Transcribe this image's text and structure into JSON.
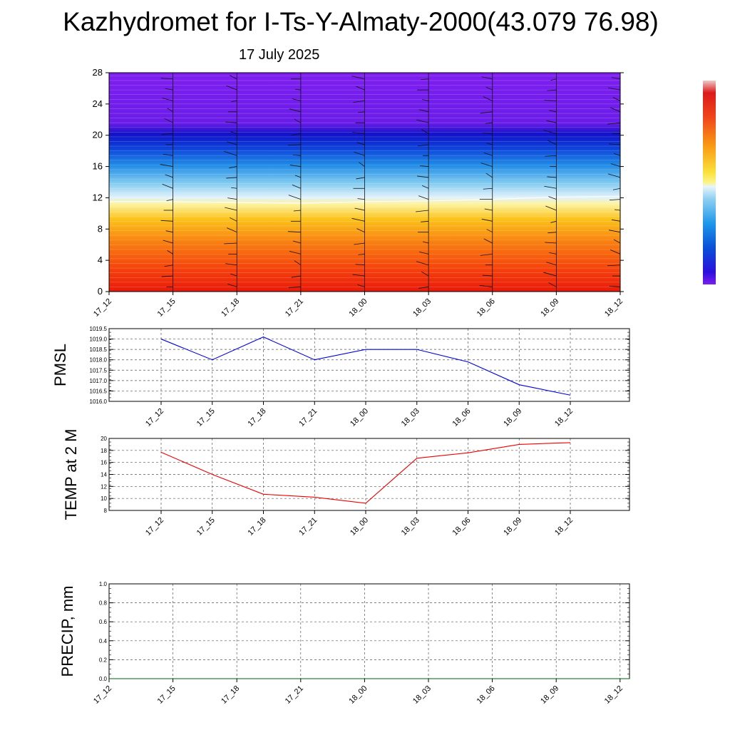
{
  "header": {
    "title": "Kazhydromet for I-Ts-Y-Almaty-2000(43.079 76.98)",
    "date": "17 July 2025"
  },
  "time_labels": [
    "17_12",
    "17_15",
    "17_18",
    "17_21",
    "18_00",
    "18_03",
    "18_06",
    "18_09",
    "18_12"
  ],
  "colors": {
    "pmsl_line": "#0000dd",
    "temp_line": "#ee0000",
    "precip_line": "#006600"
  },
  "chart_data": [
    {
      "type": "heatmap",
      "title": "",
      "x": [
        "17_12",
        "17_15",
        "17_18",
        "17_21",
        "18_00",
        "18_03",
        "18_06",
        "18_09",
        "18_12"
      ],
      "y_ticks": [
        0,
        4,
        8,
        12,
        16,
        20,
        24,
        28
      ],
      "ylim": [
        0,
        28
      ],
      "freezing_boundary": [
        11.5,
        11.5,
        11.4,
        11.3,
        11.5,
        11.6,
        11.8,
        12.1,
        12.2
      ],
      "colorbar": "purple-blue-white-yellow-orange-red",
      "wind_barbs": true
    },
    {
      "type": "line",
      "ylabel": "PMSL",
      "categories": [
        "17_12",
        "17_15",
        "17_18",
        "17_21",
        "18_00",
        "18_03",
        "18_06",
        "18_09",
        "18_12"
      ],
      "values": [
        1019.0,
        1018.0,
        1019.1,
        1018.0,
        1018.5,
        1018.5,
        1017.9,
        1016.8,
        1016.3
      ],
      "ylim": [
        1016.0,
        1019.5
      ],
      "y_ticks": [
        "1016.0",
        "1016.5",
        "1017.0",
        "1017.5",
        "1018.0",
        "1018.5",
        "1019.0",
        "1019.5"
      ],
      "grid": true
    },
    {
      "type": "line",
      "ylabel": "TEMP at 2 M",
      "categories": [
        "17_12",
        "17_15",
        "17_18",
        "17_21",
        "18_00",
        "18_03",
        "18_06",
        "18_09",
        "18_12"
      ],
      "values": [
        17.7,
        14.0,
        10.7,
        10.2,
        9.2,
        16.7,
        17.6,
        19.0,
        19.3
      ],
      "ylim": [
        8,
        20
      ],
      "y_ticks": [
        "8",
        "10",
        "12",
        "14",
        "16",
        "18",
        "20"
      ],
      "grid": true
    },
    {
      "type": "line",
      "ylabel": "PRECIP, mm",
      "categories": [
        "17_12",
        "17_15",
        "17_18",
        "17_21",
        "18_00",
        "18_03",
        "18_06",
        "18_09",
        "18_12"
      ],
      "values": [
        0,
        0,
        0,
        0,
        0,
        0,
        0,
        0,
        0
      ],
      "ylim": [
        0,
        1
      ],
      "y_ticks": [
        "0.0",
        "0.2",
        "0.4",
        "0.6",
        "0.8",
        "1.0"
      ],
      "grid": true
    }
  ]
}
